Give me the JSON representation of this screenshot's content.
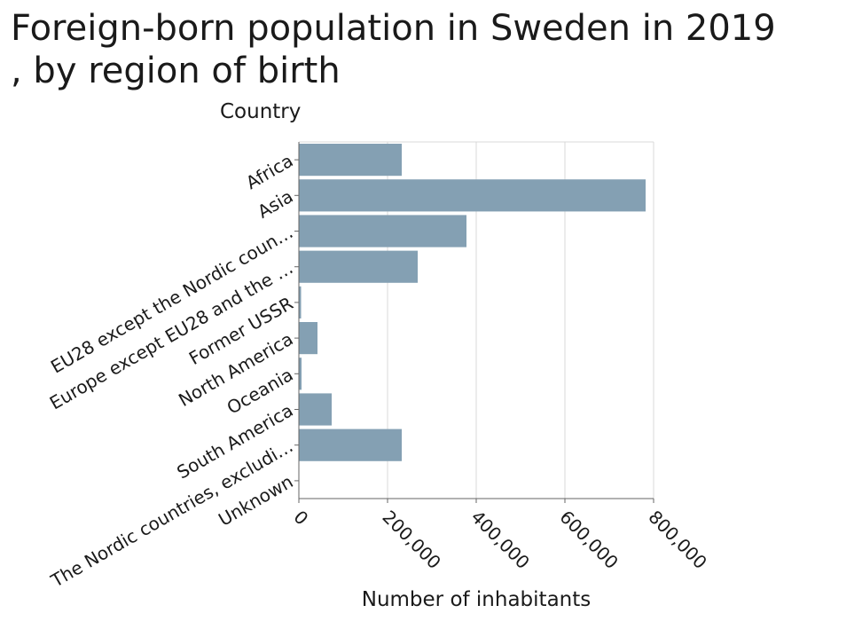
{
  "chart_data": {
    "type": "bar",
    "orientation": "horizontal",
    "title": "Foreign-born population in Sweden in 2019\n, by region of birth",
    "ylabel": "Country",
    "xlabel": "Number of inhabitants",
    "categories": [
      "Africa",
      "Asia",
      "EU28 except the Nordic coun…",
      "Europe except EU28 and the …",
      "Former USSR",
      "North America",
      "Oceania",
      "South America",
      "The Nordic countries, excludi…",
      "Unknown"
    ],
    "values": [
      232000,
      782000,
      378000,
      268000,
      5000,
      42000,
      6000,
      74000,
      232000,
      1000
    ],
    "xlim": [
      0,
      800000
    ],
    "xticks": [
      0,
      200000,
      400000,
      600000,
      800000
    ],
    "xtick_labels": [
      "0",
      "200,000",
      "400,000",
      "600,000",
      "800,000"
    ],
    "grid": true,
    "bar_color": "#84a0b3"
  }
}
